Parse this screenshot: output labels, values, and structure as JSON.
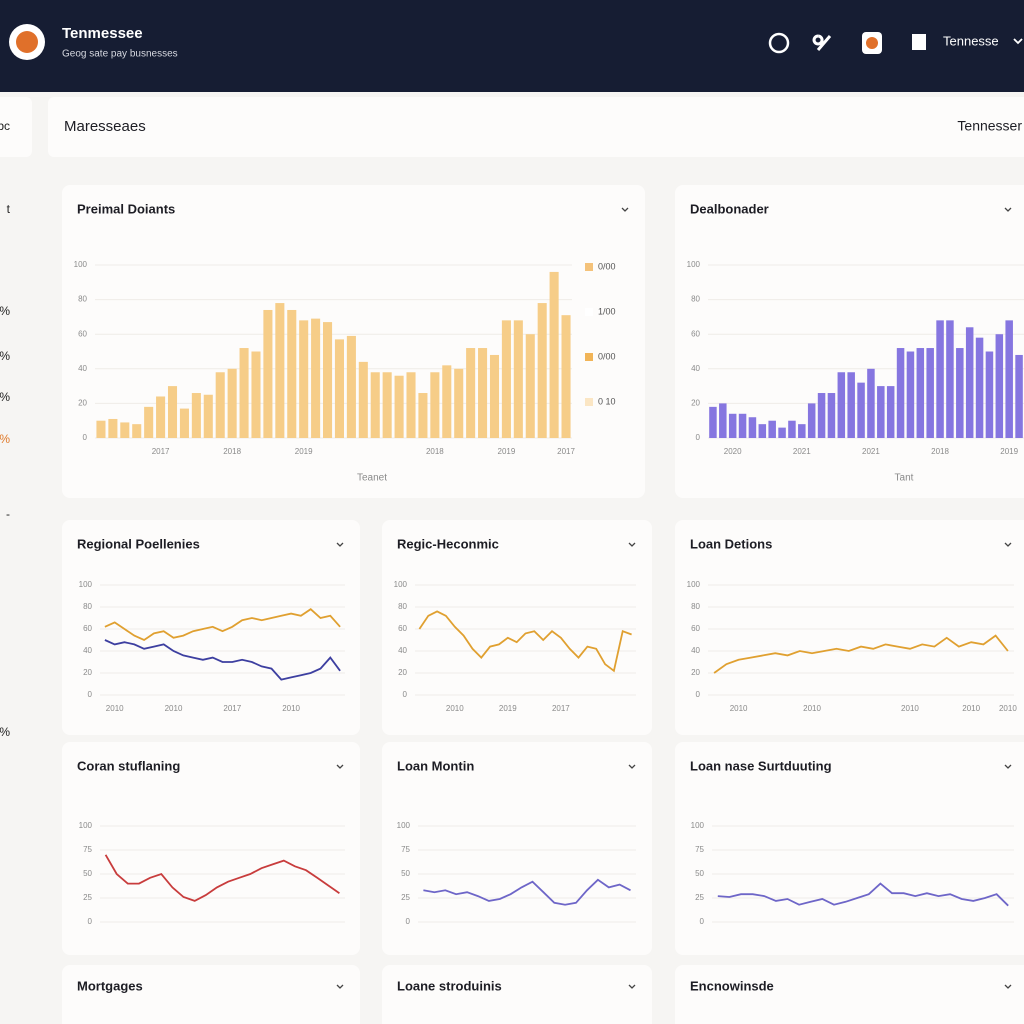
{
  "header": {
    "title": "Tenmessee",
    "subtitle": "Geog sate pay busnesses",
    "user": "Tennesse"
  },
  "toolbar": {
    "title": "Maresseaes",
    "right": "Tennesser"
  },
  "sidebar": [
    "bc",
    "t",
    "%",
    "%",
    "%",
    "%",
    "-",
    "%"
  ],
  "more_panels": [
    {
      "title": "Mortgages"
    },
    {
      "title": "Loane stroduinis"
    },
    {
      "title": "Encnowinsde"
    }
  ],
  "chart_data": [
    {
      "type": "bar",
      "title": "Preimal Doiants",
      "x_label": "Teanet",
      "color": "#f6cd88",
      "grid": true,
      "categories": [
        null,
        null,
        null,
        null,
        null,
        "2017",
        null,
        null,
        null,
        null,
        null,
        "2018",
        null,
        null,
        null,
        null,
        null,
        "2019",
        null,
        null,
        null,
        null,
        null,
        null,
        null,
        null,
        null,
        null,
        "2018",
        null,
        null,
        null,
        null,
        null,
        "2019",
        null,
        null,
        null,
        null,
        "2017"
      ],
      "values": [
        10,
        11,
        9,
        8,
        18,
        24,
        30,
        17,
        26,
        25,
        38,
        40,
        52,
        50,
        74,
        78,
        74,
        68,
        69,
        67,
        57,
        59,
        44,
        38,
        38,
        36,
        38,
        26,
        38,
        42,
        40,
        52,
        52,
        48,
        68,
        68,
        60,
        78,
        96,
        71
      ],
      "ylim": [
        0,
        100
      ],
      "yticks": [
        0,
        20,
        40,
        60,
        80,
        100
      ],
      "legend": [
        {
          "label": "0/00",
          "color": "#f4c27a"
        },
        {
          "label": "1/00",
          "color": "#ffffff"
        },
        {
          "label": "0/00",
          "color": "#f1b457"
        },
        {
          "label": "0 10",
          "color": "#fbe6c4"
        }
      ]
    },
    {
      "type": "bar",
      "title": "Dealbonader",
      "x_label": "Tant",
      "color": "#8676e0",
      "grid": true,
      "categories": [
        null,
        null,
        "2020",
        null,
        null,
        null,
        null,
        null,
        null,
        "2021",
        null,
        null,
        null,
        null,
        null,
        null,
        "2021",
        null,
        null,
        null,
        null,
        null,
        null,
        "2018",
        null,
        null,
        null,
        null,
        null,
        null,
        "2019",
        null
      ],
      "values": [
        18,
        20,
        14,
        14,
        12,
        8,
        10,
        6,
        10,
        8,
        20,
        26,
        26,
        38,
        38,
        32,
        40,
        30,
        30,
        52,
        50,
        52,
        52,
        68,
        68,
        52,
        64,
        58,
        50,
        60,
        68,
        48
      ],
      "ylim": [
        0,
        100
      ],
      "yticks": [
        0,
        20,
        40,
        60,
        80,
        100
      ]
    },
    {
      "type": "line",
      "title": "Regional Poellenies",
      "grid": true,
      "categories": [
        null,
        "2010",
        null,
        null,
        null,
        null,
        null,
        "2010",
        null,
        null,
        null,
        null,
        null,
        "2017",
        null,
        null,
        null,
        null,
        null,
        "2010",
        null,
        null,
        null,
        null,
        null
      ],
      "series": [
        {
          "name": "Regional",
          "color": "#e0a030",
          "values": [
            62,
            66,
            60,
            54,
            50,
            56,
            58,
            52,
            54,
            58,
            60,
            62,
            58,
            62,
            68,
            70,
            68,
            70,
            72,
            74,
            72,
            78,
            70,
            72,
            62
          ]
        },
        {
          "name": "Poellenies",
          "color": "#3d3fa0",
          "values": [
            50,
            46,
            48,
            46,
            42,
            44,
            46,
            40,
            36,
            34,
            32,
            34,
            30,
            30,
            32,
            30,
            26,
            24,
            14,
            16,
            18,
            20,
            24,
            34,
            22
          ]
        }
      ],
      "ylim": [
        0,
        100
      ],
      "yticks": [
        0,
        20,
        40,
        60,
        80,
        100
      ]
    },
    {
      "type": "line",
      "title": "Regic-Heconmic",
      "grid": true,
      "categories": [
        null,
        null,
        null,
        null,
        "2010",
        null,
        null,
        null,
        null,
        null,
        "2019",
        null,
        null,
        null,
        null,
        null,
        "2017",
        null,
        null,
        null,
        null,
        null,
        null,
        null,
        null
      ],
      "series": [
        {
          "name": "Heconmic",
          "color": "#e0a030",
          "values": [
            60,
            72,
            76,
            72,
            62,
            54,
            42,
            34,
            44,
            46,
            52,
            48,
            56,
            58,
            50,
            58,
            52,
            42,
            34,
            44,
            42,
            28,
            22,
            58,
            55
          ]
        }
      ],
      "ylim": [
        0,
        100
      ],
      "yticks": [
        0,
        20,
        40,
        60,
        80,
        100
      ]
    },
    {
      "type": "line",
      "title": "Loan Detions",
      "grid": true,
      "categories": [
        null,
        null,
        "2010",
        null,
        null,
        null,
        null,
        null,
        "2010",
        null,
        null,
        null,
        null,
        null,
        null,
        null,
        "2010",
        null,
        null,
        null,
        null,
        "2010",
        null,
        null,
        "2010"
      ],
      "series": [
        {
          "name": "Detions",
          "color": "#e0a030",
          "values": [
            20,
            28,
            32,
            34,
            36,
            38,
            36,
            40,
            38,
            40,
            42,
            40,
            44,
            42,
            46,
            44,
            42,
            46,
            44,
            52,
            44,
            48,
            46,
            54,
            40
          ]
        }
      ],
      "ylim": [
        0,
        100
      ],
      "yticks": [
        0,
        20,
        40,
        60,
        80,
        100
      ]
    },
    {
      "type": "line",
      "title": "Coran stuflaning",
      "grid": true,
      "series": [
        {
          "name": "Coran",
          "color": "#c83c3c",
          "values": [
            70,
            50,
            40,
            40,
            46,
            50,
            36,
            26,
            22,
            28,
            36,
            42,
            46,
            50,
            56,
            60,
            64,
            58,
            54,
            46,
            38,
            30
          ]
        }
      ],
      "ylim": [
        0,
        100
      ],
      "yticks": [
        0,
        25,
        50,
        75,
        100
      ]
    },
    {
      "type": "line",
      "title": "Loan Montin",
      "grid": true,
      "series": [
        {
          "name": "Montin",
          "color": "#6e66c8",
          "values": [
            33,
            31,
            33,
            29,
            31,
            27,
            22,
            24,
            29,
            36,
            42,
            31,
            20,
            18,
            20,
            33,
            44,
            36,
            39,
            33
          ]
        }
      ],
      "ylim": [
        0,
        100
      ],
      "yticks": [
        0,
        25,
        50,
        75,
        100
      ]
    },
    {
      "type": "line",
      "title": "Loan nase Surtduuting",
      "grid": true,
      "series": [
        {
          "name": "Surtduuting",
          "color": "#6e66c8",
          "values": [
            27,
            26,
            29,
            29,
            27,
            22,
            24,
            18,
            21,
            24,
            18,
            21,
            25,
            29,
            40,
            30,
            30,
            27,
            30,
            27,
            29,
            24,
            22,
            25,
            29,
            17
          ]
        }
      ],
      "ylim": [
        0,
        100
      ],
      "yticks": [
        0,
        25,
        50,
        75,
        100
      ]
    }
  ]
}
